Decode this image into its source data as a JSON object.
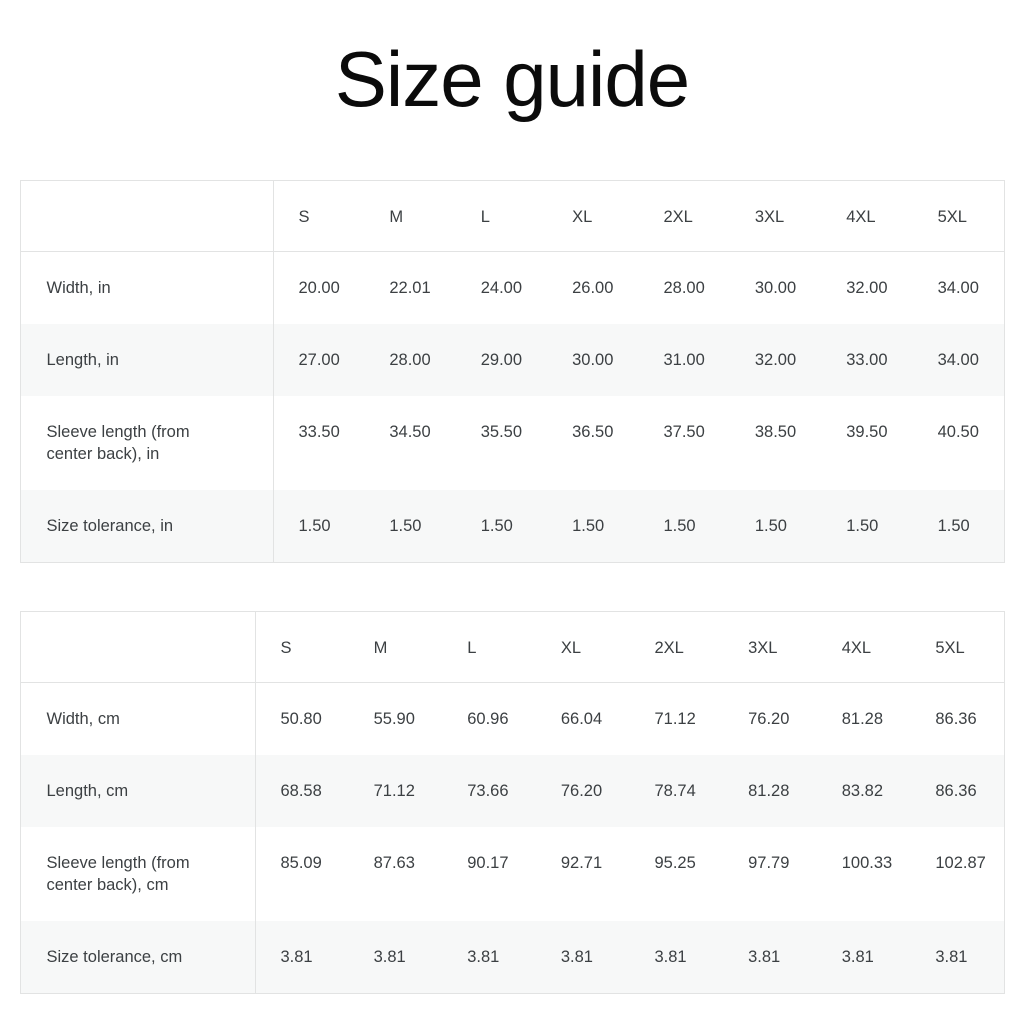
{
  "page": {
    "title": "Size guide"
  },
  "colors": {
    "background": "#ffffff",
    "title_text": "#0b0b0b",
    "table_text": "#3c4043",
    "table_border": "#e2e3e3",
    "row_stripe": "#f7f8f8"
  },
  "chart_data": [
    {
      "type": "table",
      "name": "size-table-inches",
      "unit": "in",
      "columns": [
        "",
        "S",
        "M",
        "L",
        "XL",
        "2XL",
        "3XL",
        "4XL",
        "5XL"
      ],
      "rows": [
        {
          "label": "Width, in",
          "values": [
            "20.00",
            "22.01",
            "24.00",
            "26.00",
            "28.00",
            "30.00",
            "32.00",
            "34.00"
          ]
        },
        {
          "label": "Length, in",
          "values": [
            "27.00",
            "28.00",
            "29.00",
            "30.00",
            "31.00",
            "32.00",
            "33.00",
            "34.00"
          ]
        },
        {
          "label": "Sleeve length (from center back), in",
          "values": [
            "33.50",
            "34.50",
            "35.50",
            "36.50",
            "37.50",
            "38.50",
            "39.50",
            "40.50"
          ]
        },
        {
          "label": "Size tolerance, in",
          "values": [
            "1.50",
            "1.50",
            "1.50",
            "1.50",
            "1.50",
            "1.50",
            "1.50",
            "1.50"
          ]
        }
      ]
    },
    {
      "type": "table",
      "name": "size-table-centimeters",
      "unit": "cm",
      "columns": [
        "",
        "S",
        "M",
        "L",
        "XL",
        "2XL",
        "3XL",
        "4XL",
        "5XL"
      ],
      "rows": [
        {
          "label": "Width, cm",
          "values": [
            "50.80",
            "55.90",
            "60.96",
            "66.04",
            "71.12",
            "76.20",
            "81.28",
            "86.36"
          ]
        },
        {
          "label": "Length, cm",
          "values": [
            "68.58",
            "71.12",
            "73.66",
            "76.20",
            "78.74",
            "81.28",
            "83.82",
            "86.36"
          ]
        },
        {
          "label": "Sleeve length (from center back), cm",
          "values": [
            "85.09",
            "87.63",
            "90.17",
            "92.71",
            "95.25",
            "97.79",
            "100.33",
            "102.87"
          ]
        },
        {
          "label": "Size tolerance, cm",
          "values": [
            "3.81",
            "3.81",
            "3.81",
            "3.81",
            "3.81",
            "3.81",
            "3.81",
            "3.81"
          ]
        }
      ]
    }
  ]
}
